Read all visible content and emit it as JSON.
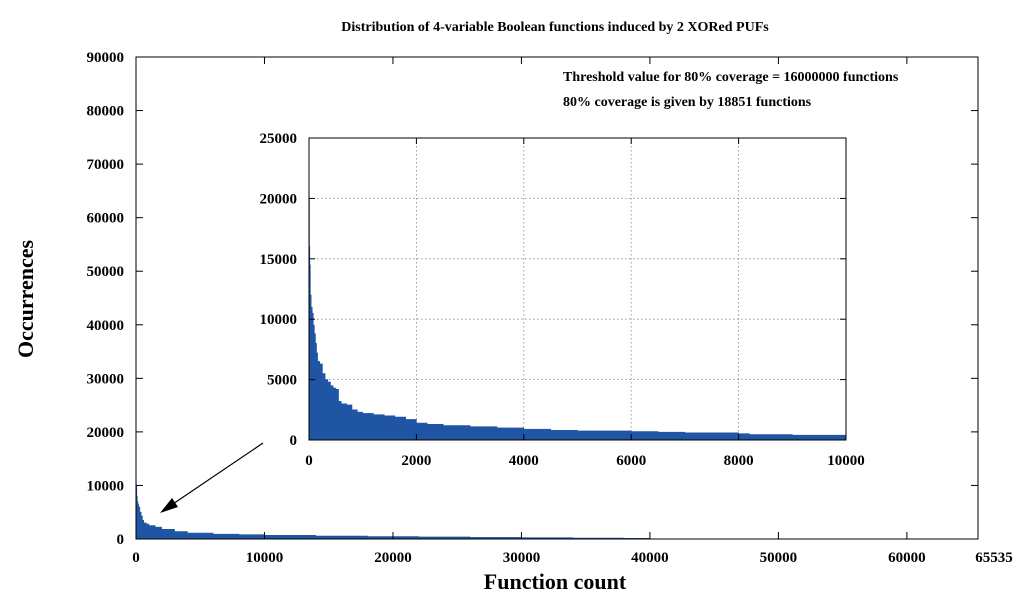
{
  "colors": {
    "bar": "#1f55a3",
    "grid": "#888888"
  },
  "chart_data": [
    {
      "type": "area",
      "title": "Distribution of 4-variable Boolean functions induced by 2 XORed PUFs",
      "xlabel": "Function count",
      "ylabel": "Occurrences",
      "xlim": [
        0,
        65535
      ],
      "ylim": [
        0,
        90000
      ],
      "x_ticks": [
        0,
        10000,
        20000,
        30000,
        40000,
        50000,
        60000,
        65535
      ],
      "y_ticks": [
        0,
        10000,
        20000,
        30000,
        40000,
        50000,
        60000,
        70000,
        80000,
        90000
      ],
      "grid": false,
      "annotations": [
        "Threshold value for 80% coverage = 16000000 functions",
        "80% coverage is given by 18851 functions"
      ],
      "series": [
        {
          "x": [
            0,
            20,
            60,
            100,
            150,
            200,
            300,
            400,
            500,
            600,
            800,
            1000,
            1500,
            2000,
            3000,
            4000,
            6000,
            8000,
            10000,
            14000,
            18000,
            22000,
            26000,
            30000,
            34000,
            38000,
            40000,
            40001,
            65535
          ],
          "y": [
            11000,
            10000,
            8000,
            7000,
            6500,
            6000,
            5000,
            4300,
            3500,
            3000,
            2800,
            2500,
            2200,
            1800,
            1400,
            1100,
            900,
            800,
            700,
            560,
            460,
            380,
            300,
            240,
            180,
            130,
            100,
            0,
            0
          ]
        }
      ]
    },
    {
      "type": "area",
      "title": "",
      "xlim": [
        0,
        10000
      ],
      "ylim": [
        0,
        25000
      ],
      "x_ticks": [
        0,
        2000,
        4000,
        6000,
        8000,
        10000
      ],
      "y_ticks": [
        0,
        5000,
        10000,
        15000,
        20000,
        25000
      ],
      "grid": true,
      "series": [
        {
          "x": [
            0,
            3,
            8,
            15,
            25,
            40,
            60,
            80,
            100,
            120,
            140,
            160,
            200,
            250,
            300,
            350,
            400,
            450,
            500,
            550,
            600,
            700,
            800,
            900,
            1000,
            1200,
            1400,
            1600,
            1800,
            2000,
            2200,
            2500,
            3000,
            3500,
            4000,
            4500,
            5000,
            6000,
            6500,
            7000,
            8000,
            8200,
            9000,
            10000
          ],
          "y": [
            24500,
            20000,
            16000,
            14500,
            12000,
            11000,
            10500,
            9500,
            8800,
            8000,
            7200,
            6500,
            6300,
            5500,
            5000,
            4800,
            4500,
            4300,
            4200,
            3200,
            3000,
            2900,
            2500,
            2300,
            2200,
            2100,
            2000,
            1900,
            1700,
            1400,
            1300,
            1200,
            1100,
            1000,
            900,
            800,
            750,
            700,
            650,
            600,
            520,
            450,
            400,
            350
          ]
        }
      ]
    }
  ]
}
